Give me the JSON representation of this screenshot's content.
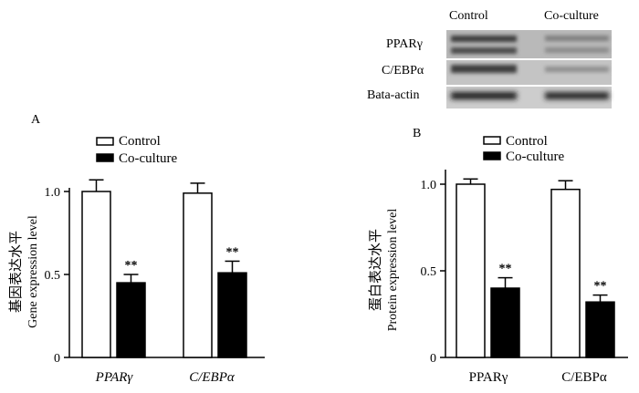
{
  "colors": {
    "control": "#ffffff",
    "coculture": "#000000",
    "stroke": "#000000"
  },
  "blot": {
    "columns": [
      "Control",
      "Co-culture"
    ],
    "rows": [
      "PPARγ",
      "C/EBPα",
      "Bata-actin"
    ]
  },
  "chart_data": [
    {
      "type": "bar",
      "panel": "A",
      "categories": [
        "PPARγ",
        "C/EBPα"
      ],
      "category_style": "italic",
      "series": [
        {
          "name": "Control",
          "values": [
            1.0,
            0.99
          ],
          "errors": [
            0.07,
            0.06
          ],
          "sig": [
            "",
            ""
          ]
        },
        {
          "name": "Co-culture",
          "values": [
            0.45,
            0.51
          ],
          "errors": [
            0.05,
            0.07
          ],
          "sig": [
            "**",
            "**"
          ]
        }
      ],
      "ylabel_cn": "基因表达水平",
      "ylabel_en": "Gene expression level",
      "ylim": [
        0,
        1.0
      ],
      "yticks": [
        0,
        0.5,
        1.0
      ],
      "yticklabels": [
        "0",
        "0.5",
        "1.0"
      ],
      "legend": "top"
    },
    {
      "type": "bar",
      "panel": "B",
      "categories": [
        "PPARγ",
        "C/EBPα"
      ],
      "category_style": "normal",
      "series": [
        {
          "name": "Control",
          "values": [
            1.0,
            0.97
          ],
          "errors": [
            0.03,
            0.05
          ],
          "sig": [
            "",
            ""
          ]
        },
        {
          "name": "Co-culture",
          "values": [
            0.4,
            0.32
          ],
          "errors": [
            0.06,
            0.04
          ],
          "sig": [
            "**",
            "**"
          ]
        }
      ],
      "ylabel_cn": "蛋白表达水平",
      "ylabel_en": "Protein expression level",
      "ylim": [
        0,
        1.0
      ],
      "yticks": [
        0,
        0.5,
        1.0
      ],
      "yticklabels": [
        "0",
        "0.5",
        "1.0"
      ],
      "legend": "top"
    }
  ]
}
